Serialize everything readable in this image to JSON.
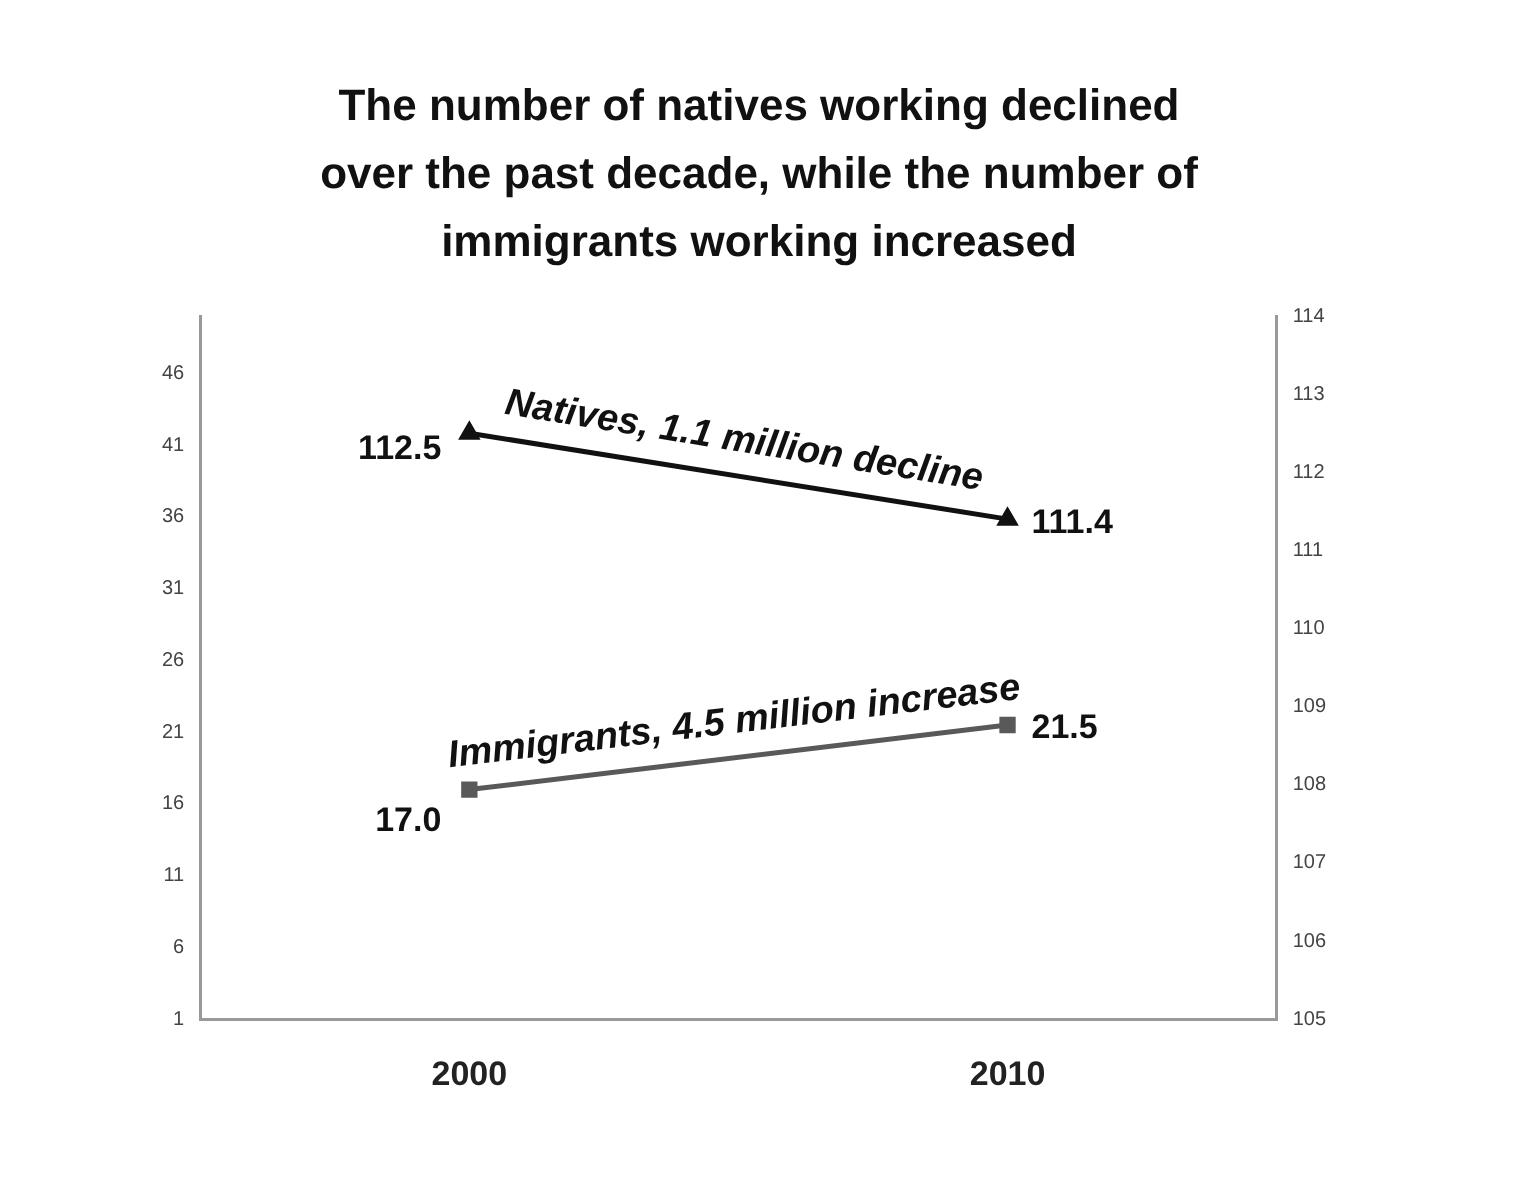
{
  "chart_data": {
    "type": "line",
    "title": "The number of natives working declined over the past decade, while the number of immigrants working increased",
    "categories": [
      "2000",
      "2010"
    ],
    "series": [
      {
        "name": "Natives, 1.1 million decline",
        "color": "#111111",
        "values": [
          112.5,
          111.4
        ],
        "value_labels": [
          "112.5",
          "111.4"
        ],
        "axis": "y2",
        "marker": "triangle"
      },
      {
        "name": "Immigrants, 4.5 million increase",
        "color": "#595959",
        "values": [
          17.0,
          21.5
        ],
        "value_labels": [
          "17.0",
          "21.5"
        ],
        "marker": "square"
      }
    ],
    "ylim": [
      1,
      50
    ],
    "yticks": [
      1,
      6,
      11,
      16,
      21,
      26,
      31,
      36,
      41,
      46
    ],
    "y2lim": [
      105,
      114
    ],
    "y2ticks": [
      105,
      106,
      107,
      108,
      109,
      110,
      111,
      112,
      113,
      114
    ],
    "grid": false,
    "legend": false
  }
}
